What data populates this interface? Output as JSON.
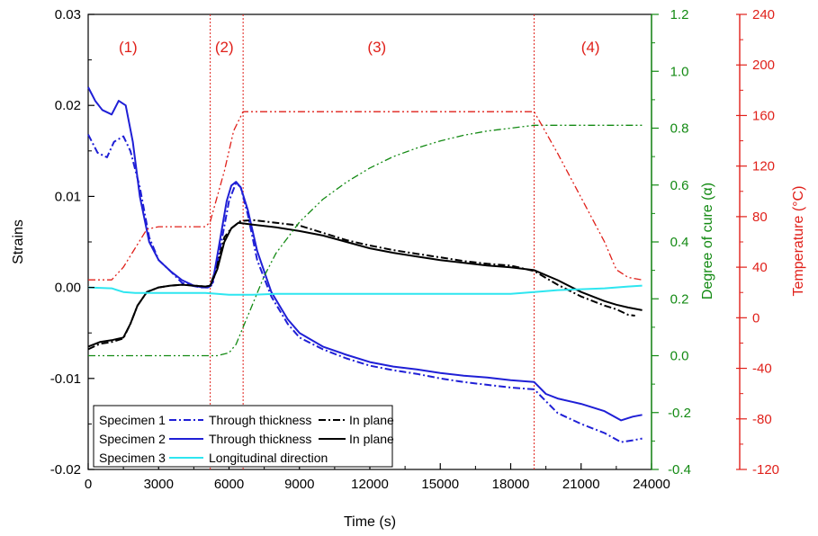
{
  "chart_data": {
    "type": "line",
    "xlabel": "Time (s)",
    "ylabel_left": "Strains",
    "ylabel_right1": "Degree of cure (α)",
    "ylabel_right2": "Temperature (°C)",
    "xlim": [
      0,
      24000
    ],
    "ylim_left": [
      -0.02,
      0.03
    ],
    "ylim_right1": [
      -0.4,
      1.2
    ],
    "ylim_right2": [
      -120,
      240
    ],
    "x_ticks": [
      "0",
      "3000",
      "6000",
      "9000",
      "12000",
      "15000",
      "18000",
      "21000",
      "24000"
    ],
    "y_left_ticks": [
      "-0.02",
      "-0.01",
      "0.00",
      "0.01",
      "0.02",
      "0.03"
    ],
    "y_right1_ticks": [
      "-0.4",
      "-0.2",
      "0.0",
      "0.2",
      "0.4",
      "0.6",
      "0.8",
      "1.0",
      "1.2"
    ],
    "y_right2_ticks": [
      "-120",
      "-80",
      "-40",
      "0",
      "40",
      "80",
      "120",
      "160",
      "200",
      "240"
    ],
    "phase_labels": [
      "(1)",
      "(2)",
      "(3)",
      "(4)"
    ],
    "phase_boundaries": [
      5200,
      6600,
      19000
    ],
    "colors": {
      "blue": "#1f1fd6",
      "black": "#000000",
      "cyan": "#2ee6f0",
      "red": "#e0201a",
      "green": "#138a13"
    },
    "legend": {
      "placement": "bottom-left",
      "rows": [
        {
          "specimen": "Specimen 1",
          "a": "Through thickness",
          "b": "In plane"
        },
        {
          "specimen": "Specimen 2",
          "a": "Through thickness",
          "b": "In plane"
        },
        {
          "specimen": "Specimen 3",
          "a": "Longitudinal direction",
          "b": ""
        }
      ]
    },
    "series": [
      {
        "name": "Specimen 1 Through thickness",
        "axis": "left",
        "color": "#1f1fd6",
        "style": "dashdot",
        "x": [
          0,
          400,
          800,
          1100,
          1500,
          1800,
          2200,
          2600,
          3000,
          3500,
          4000,
          4400,
          4800,
          5100,
          5300,
          5600,
          6000,
          6300,
          6500,
          6800,
          7200,
          7800,
          8500,
          9000,
          10000,
          11000,
          12000,
          13000,
          14000,
          15000,
          16000,
          17000,
          18000,
          19000,
          19500,
          20000,
          21000,
          22000,
          22700,
          23200,
          23600
        ],
        "y": [
          0.0168,
          0.0148,
          0.0143,
          0.016,
          0.0166,
          0.015,
          0.011,
          0.0055,
          0.003,
          0.0018,
          0.0005,
          0.0002,
          0.0,
          0.0,
          0.0003,
          0.004,
          0.0095,
          0.0115,
          0.011,
          0.008,
          0.003,
          -0.001,
          -0.004,
          -0.0055,
          -0.0068,
          -0.0078,
          -0.0086,
          -0.0091,
          -0.0095,
          -0.01,
          -0.0104,
          -0.0107,
          -0.011,
          -0.0112,
          -0.0125,
          -0.0138,
          -0.015,
          -0.016,
          -0.017,
          -0.0168,
          -0.0166
        ]
      },
      {
        "name": "Specimen 1 In plane",
        "axis": "left",
        "color": "#000000",
        "style": "dashdot",
        "x": [
          0,
          500,
          1000,
          1500,
          1800,
          2100,
          2500,
          3000,
          3500,
          4000,
          4500,
          5000,
          5200,
          5500,
          5800,
          6100,
          6500,
          7000,
          8000,
          9000,
          10000,
          11000,
          12000,
          13000,
          14000,
          15000,
          16000,
          17000,
          18000,
          19000,
          20000,
          21000,
          22000,
          22500,
          23000,
          23300
        ],
        "y": [
          -0.0068,
          -0.0062,
          -0.006,
          -0.0056,
          -0.004,
          -0.002,
          -0.0005,
          0.0,
          0.0002,
          0.0003,
          0.0002,
          0.0001,
          0.0002,
          0.0025,
          0.0055,
          0.0065,
          0.0073,
          0.0074,
          0.0071,
          0.0068,
          0.006,
          0.0052,
          0.0046,
          0.0041,
          0.0037,
          0.0033,
          0.0029,
          0.0026,
          0.0024,
          0.0018,
          0.0003,
          -0.001,
          -0.002,
          -0.0024,
          -0.003,
          -0.0031
        ]
      },
      {
        "name": "Specimen 2 Through thickness",
        "axis": "left",
        "color": "#1f1fd6",
        "style": "solid",
        "x": [
          0,
          300,
          600,
          1000,
          1300,
          1600,
          1900,
          2200,
          2600,
          3000,
          3500,
          4000,
          4500,
          4900,
          5100,
          5300,
          5600,
          5900,
          6100,
          6300,
          6500,
          6800,
          7200,
          7800,
          8500,
          9000,
          10000,
          11000,
          12000,
          13000,
          14000,
          15000,
          16000,
          17000,
          18000,
          19000,
          19500,
          20000,
          21000,
          22000,
          22700,
          23200,
          23600
        ],
        "y": [
          0.022,
          0.0205,
          0.0195,
          0.019,
          0.0205,
          0.02,
          0.016,
          0.01,
          0.005,
          0.003,
          0.0018,
          0.0008,
          0.0002,
          0.0,
          0.0,
          0.0005,
          0.005,
          0.0095,
          0.0112,
          0.0116,
          0.011,
          0.0085,
          0.004,
          -0.0005,
          -0.0035,
          -0.005,
          -0.0065,
          -0.0074,
          -0.0082,
          -0.0087,
          -0.009,
          -0.0094,
          -0.0097,
          -0.0099,
          -0.0102,
          -0.0104,
          -0.0117,
          -0.0122,
          -0.0128,
          -0.0136,
          -0.0146,
          -0.0142,
          -0.014
        ]
      },
      {
        "name": "Specimen 2 In plane",
        "axis": "left",
        "color": "#000000",
        "style": "solid",
        "x": [
          0,
          500,
          1000,
          1500,
          1800,
          2100,
          2500,
          3000,
          3500,
          4000,
          4500,
          5000,
          5200,
          5500,
          5800,
          6100,
          6400,
          7000,
          8000,
          9000,
          10000,
          11000,
          12000,
          13000,
          14000,
          15000,
          16000,
          17000,
          18000,
          19000,
          20000,
          21000,
          22000,
          22500,
          23000,
          23600
        ],
        "y": [
          -0.0065,
          -0.006,
          -0.0058,
          -0.0055,
          -0.004,
          -0.002,
          -0.0005,
          0.0,
          0.0002,
          0.0003,
          0.0002,
          0.0001,
          0.0002,
          0.002,
          0.005,
          0.0065,
          0.0071,
          0.0069,
          0.0066,
          0.0062,
          0.0057,
          0.005,
          0.0043,
          0.0038,
          0.0034,
          0.003,
          0.0027,
          0.0024,
          0.0022,
          0.0019,
          0.0008,
          -0.0005,
          -0.0015,
          -0.0019,
          -0.0022,
          -0.0025
        ]
      },
      {
        "name": "Specimen 3 Longitudinal direction",
        "axis": "left",
        "color": "#2ee6f0",
        "style": "solid",
        "x": [
          0,
          1000,
          1500,
          2000,
          3000,
          4000,
          5000,
          5500,
          6000,
          6500,
          7000,
          8000,
          10000,
          12000,
          14000,
          16000,
          18000,
          19000,
          20000,
          21000,
          22000,
          22500,
          23000,
          23600
        ],
        "y": [
          0.0,
          -0.0001,
          -0.0005,
          -0.0006,
          -0.0006,
          -0.0006,
          -0.0006,
          -0.0007,
          -0.0008,
          -0.0008,
          -0.0008,
          -0.0007,
          -0.0007,
          -0.0007,
          -0.0007,
          -0.0007,
          -0.0007,
          -0.0005,
          -0.0003,
          -0.0002,
          -0.0001,
          0.0,
          0.0001,
          0.0002
        ]
      },
      {
        "name": "Degree of cure",
        "axis": "right1",
        "color": "#138a13",
        "style": "dashdotdot",
        "x": [
          0,
          2000,
          4000,
          5500,
          6000,
          6300,
          6600,
          7000,
          7500,
          8000,
          9000,
          10000,
          11000,
          12000,
          13000,
          14000,
          15000,
          16000,
          17000,
          18000,
          19000,
          20000,
          22000,
          23600
        ],
        "y": [
          0.0,
          0.0,
          0.0,
          0.0,
          0.01,
          0.04,
          0.1,
          0.18,
          0.28,
          0.36,
          0.47,
          0.55,
          0.61,
          0.66,
          0.7,
          0.73,
          0.755,
          0.775,
          0.79,
          0.8,
          0.81,
          0.81,
          0.81,
          0.81
        ]
      },
      {
        "name": "Temperature",
        "axis": "right2",
        "color": "#e0201a",
        "style": "dashdotdot",
        "x": [
          0,
          1000,
          1500,
          2500,
          3000,
          4000,
          5000,
          5200,
          5800,
          6200,
          6600,
          9000,
          12000,
          15000,
          18000,
          19000,
          20000,
          21000,
          22000,
          22500,
          23000,
          23600
        ],
        "y": [
          30,
          30,
          40,
          70,
          72,
          72,
          72,
          76,
          116,
          148,
          163,
          163,
          163,
          163,
          163,
          163,
          130,
          95,
          60,
          38,
          32,
          30
        ]
      }
    ]
  }
}
